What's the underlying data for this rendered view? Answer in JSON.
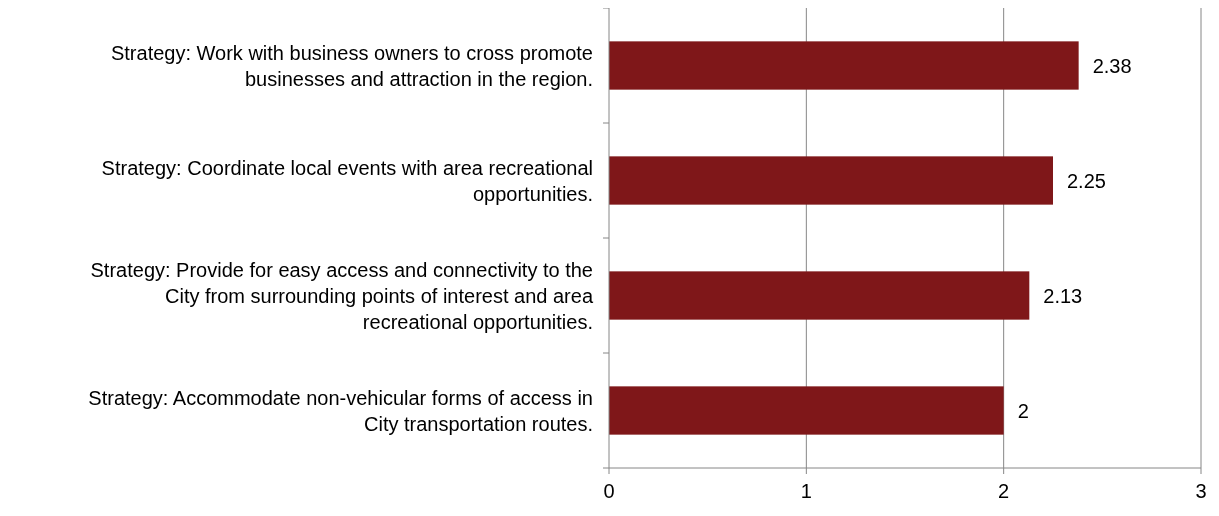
{
  "chart_data": {
    "type": "bar",
    "orientation": "horizontal",
    "categories": [
      "Strategy: Work with business owners to cross promote businesses and attraction in the region.",
      "Strategy: Coordinate local events with area recreational opportunities.",
      "Strategy: Provide for easy access and connectivity to the City from surrounding points of interest and area recreational opportunities.",
      "Strategy: Accommodate non-vehicular forms of access in City transportation routes."
    ],
    "values": [
      2.38,
      2.25,
      2.13,
      2
    ],
    "color": "#7f1719",
    "xlim": [
      0,
      3
    ],
    "xticks": [
      0,
      1,
      2,
      3
    ],
    "grid": "x",
    "data_labels": true
  }
}
